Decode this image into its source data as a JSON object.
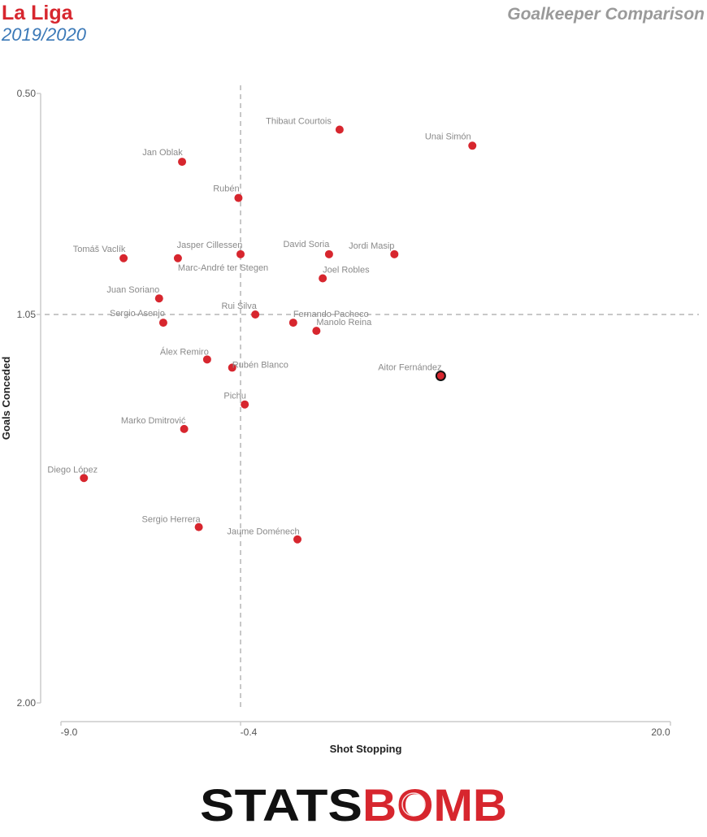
{
  "header": {
    "league": "La Liga",
    "season": "2019/2020",
    "title": "Goalkeeper Comparison"
  },
  "logo": {
    "word_left": "STATS",
    "word_right": "BOMB"
  },
  "colors": {
    "league": "#d7262e",
    "season": "#3a78b7",
    "point": "#d7262e",
    "highlight_stroke": "#111111",
    "grid": "#c8c8c8",
    "label": "#8a8a8a"
  },
  "chart_data": {
    "type": "scatter",
    "title": "",
    "xlabel": "Shot Stopping",
    "ylabel": "Goals Conceded",
    "xlim": [
      -9.0,
      20.0
    ],
    "ylim": [
      2.0,
      0.5
    ],
    "y_inverted": true,
    "xticks": [
      "-9.0",
      "-0.4",
      "20.0"
    ],
    "yticks": [
      "0.50",
      "1.05",
      "2.00"
    ],
    "reference_lines": {
      "x": -0.4,
      "y": 1.05
    },
    "grid": false,
    "points": [
      {
        "name": "Thibaut Courtois",
        "x": 4.3,
        "y": 0.59
      },
      {
        "name": "Unai Simón",
        "x": 10.6,
        "y": 0.63
      },
      {
        "name": "Jan Oblak",
        "x": -3.2,
        "y": 0.67
      },
      {
        "name": "Rubén",
        "x": -0.5,
        "y": 0.76
      },
      {
        "name": "Jasper Cillessen",
        "x": -0.4,
        "y": 0.9
      },
      {
        "name": "Marc-André ter Stegen",
        "x": -3.4,
        "y": 0.91
      },
      {
        "name": "Tomáš Vaclík",
        "x": -6.0,
        "y": 0.91
      },
      {
        "name": "David Soria",
        "x": 3.8,
        "y": 0.9
      },
      {
        "name": "Jordi Masip",
        "x": 6.9,
        "y": 0.9
      },
      {
        "name": "Joel Robles",
        "x": 3.5,
        "y": 0.96
      },
      {
        "name": "Juan Soriano",
        "x": -4.3,
        "y": 1.01
      },
      {
        "name": "Rui Silva",
        "x": 0.3,
        "y": 1.05
      },
      {
        "name": "Sergio Asenjo",
        "x": -4.1,
        "y": 1.07
      },
      {
        "name": "Fernando Pacheco",
        "x": 2.1,
        "y": 1.07
      },
      {
        "name": "Manolo Reina",
        "x": 3.2,
        "y": 1.09
      },
      {
        "name": "Álex Remiro",
        "x": -2.0,
        "y": 1.16
      },
      {
        "name": "Rubén Blanco",
        "x": -0.8,
        "y": 1.18
      },
      {
        "name": "Aitor Fernández",
        "x": 9.1,
        "y": 1.2,
        "highlight": true
      },
      {
        "name": "Pichu",
        "x": -0.2,
        "y": 1.27
      },
      {
        "name": "Marko Dmitrović",
        "x": -3.1,
        "y": 1.33
      },
      {
        "name": "Diego López",
        "x": -7.9,
        "y": 1.45
      },
      {
        "name": "Sergio Herrera",
        "x": -2.4,
        "y": 1.57
      },
      {
        "name": "Jaume Doménech",
        "x": 2.3,
        "y": 1.6
      }
    ]
  }
}
